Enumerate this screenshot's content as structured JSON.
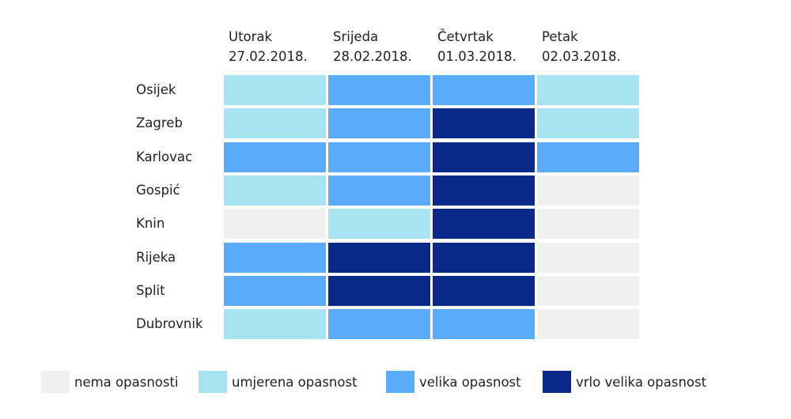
{
  "chart_data": {
    "type": "heatmap",
    "columns": [
      {
        "day": "Utorak",
        "date": "27.02.2018."
      },
      {
        "day": "Srijeda",
        "date": "28.02.2018."
      },
      {
        "day": "Četvrtak",
        "date": "01.03.2018."
      },
      {
        "day": "Petak",
        "date": "02.03.2018."
      }
    ],
    "rows": [
      "Osijek",
      "Zagreb",
      "Karlovac",
      "Gospić",
      "Knin",
      "Rijeka",
      "Split",
      "Dubrovnik"
    ],
    "levels": [
      {
        "label": "nema opasnosti",
        "color": "#f0f0f0"
      },
      {
        "label": "umjerena opasnost",
        "color": "#a8e3f3"
      },
      {
        "label": "velika opasnost",
        "color": "#5aabfa"
      },
      {
        "label": "vrlo velika opasnost",
        "color": "#0a2a8a"
      }
    ],
    "values": [
      [
        1,
        2,
        2,
        1
      ],
      [
        1,
        2,
        3,
        1
      ],
      [
        2,
        2,
        3,
        2
      ],
      [
        1,
        2,
        3,
        0
      ],
      [
        0,
        1,
        3,
        0
      ],
      [
        2,
        3,
        3,
        0
      ],
      [
        2,
        3,
        3,
        0
      ],
      [
        1,
        2,
        2,
        0
      ]
    ]
  }
}
